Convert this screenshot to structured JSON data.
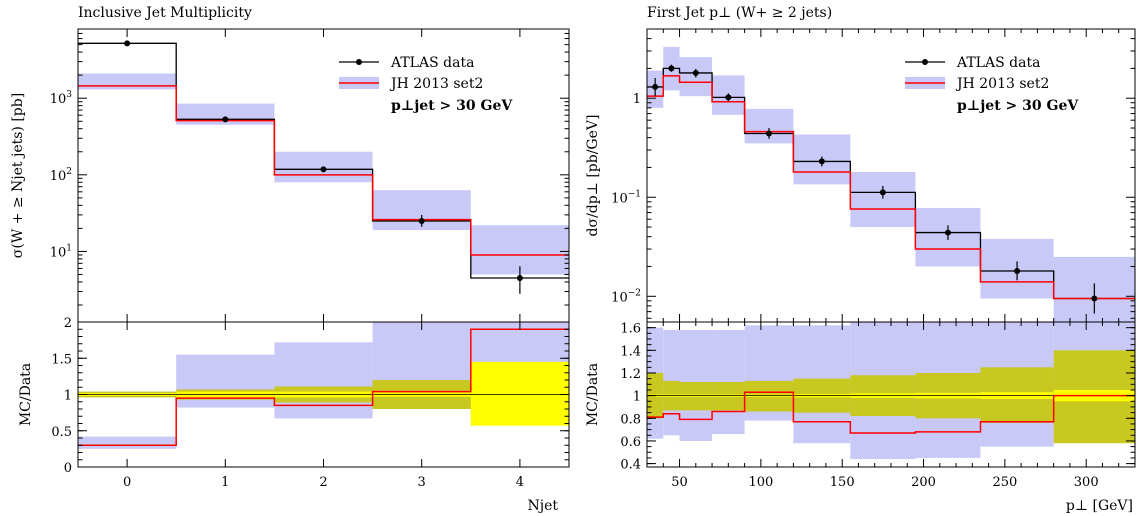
{
  "colors": {
    "data": "#000000",
    "mc": "#ff0000",
    "mc_band": "#c9c9f7",
    "stat_band": "#ffff00",
    "syst_band": "#c8c820"
  },
  "legend": {
    "data": "ATLAS data",
    "mc": "JH 2013 set2",
    "cut": "p⊥jet > 30 GeV"
  },
  "chart_data": [
    {
      "type": "line",
      "title": "Inclusive Jet Multiplicity",
      "ylabel": "σ(W + ≥ Njet jets) [pb]",
      "ratio_ylabel": "MC/Data",
      "xlabel": "Njet",
      "yscale": "log",
      "xlim": [
        -0.5,
        4.5
      ],
      "ylim": [
        1.2,
        8000
      ],
      "ratio_ylim": [
        0,
        2
      ],
      "xticks": [
        "0",
        "1",
        "2",
        "3",
        "4"
      ],
      "yticks": [
        "10^1",
        "10^2",
        "10^3"
      ],
      "ratio_yticks": [
        "0",
        "0.5",
        "1",
        "1.5",
        "2"
      ],
      "bins": [
        [
          -0.5,
          0.5
        ],
        [
          0.5,
          1.5
        ],
        [
          1.5,
          2.5
        ],
        [
          2.5,
          3.5
        ],
        [
          3.5,
          4.5
        ]
      ],
      "data": {
        "values": [
          5200,
          530,
          118,
          25,
          4.5
        ],
        "err_lo": [
          5200,
          530,
          108,
          21,
          2.8
        ],
        "err_hi": [
          5200,
          530,
          128,
          30,
          6.4
        ]
      },
      "mc": {
        "values": [
          1450,
          510,
          100,
          26,
          9
        ],
        "band_lo": [
          1300,
          450,
          80,
          19,
          5
        ],
        "band_hi": [
          2100,
          850,
          200,
          63,
          22
        ]
      },
      "ratio": {
        "mc": [
          0.3,
          0.95,
          0.85,
          1.04,
          1.9
        ],
        "mc_band_lo": [
          0.25,
          0.82,
          0.67,
          0.8,
          1.4
        ],
        "mc_band_hi": [
          0.42,
          1.55,
          1.72,
          2.0,
          2.0
        ],
        "stat_lo": [
          0.98,
          0.96,
          0.96,
          0.97,
          0.57
        ],
        "stat_hi": [
          1.02,
          1.04,
          1.04,
          1.03,
          1.45
        ],
        "syst_lo": [
          0.96,
          0.93,
          0.89,
          0.8,
          0.6
        ],
        "syst_hi": [
          1.04,
          1.07,
          1.11,
          1.2,
          1.4
        ]
      }
    },
    {
      "type": "line",
      "title": "First Jet p⊥ (W+ ≥ 2 jets)",
      "ylabel": "dσ/dp⊥ [pb/GeV]",
      "ratio_ylabel": "MC/Data",
      "xlabel": "p⊥ [GeV]",
      "yscale": "log",
      "xlim": [
        30,
        330
      ],
      "ylim": [
        0.0055,
        5
      ],
      "ratio_ylim": [
        0.37,
        1.65
      ],
      "xticks": [
        "50",
        "100",
        "150",
        "200",
        "250",
        "300"
      ],
      "yticks": [
        "10^-2",
        "10^-1",
        "1"
      ],
      "ratio_yticks": [
        "0.4",
        "0.6",
        "0.8",
        "1",
        "1.2",
        "1.4",
        "1.6"
      ],
      "bins": [
        [
          30,
          40
        ],
        [
          40,
          50
        ],
        [
          50,
          70
        ],
        [
          70,
          90
        ],
        [
          90,
          120
        ],
        [
          120,
          155
        ],
        [
          155,
          195
        ],
        [
          195,
          235
        ],
        [
          235,
          280
        ],
        [
          280,
          330
        ]
      ],
      "data": {
        "values": [
          1.3,
          2.0,
          1.8,
          1.02,
          0.44,
          0.23,
          0.112,
          0.044,
          0.018,
          0.0095
        ],
        "err_lo": [
          1.05,
          1.85,
          1.62,
          0.93,
          0.39,
          0.205,
          0.097,
          0.037,
          0.0145,
          0.0067
        ],
        "err_hi": [
          1.6,
          2.18,
          1.98,
          1.12,
          0.5,
          0.258,
          0.13,
          0.052,
          0.0225,
          0.0135
        ]
      },
      "mc": {
        "values": [
          1.05,
          1.68,
          1.45,
          0.92,
          0.46,
          0.18,
          0.076,
          0.03,
          0.014,
          0.0095
        ],
        "band_lo": [
          0.8,
          1.2,
          1.05,
          0.68,
          0.35,
          0.135,
          0.05,
          0.02,
          0.0095,
          0.0055
        ],
        "band_hi": [
          1.9,
          3.3,
          2.6,
          1.7,
          0.78,
          0.43,
          0.18,
          0.078,
          0.038,
          0.025
        ]
      },
      "ratio": {
        "mc": [
          0.81,
          0.84,
          0.79,
          0.86,
          1.03,
          0.77,
          0.67,
          0.68,
          0.77,
          1.0
        ],
        "mc_band_lo": [
          0.62,
          0.65,
          0.6,
          0.66,
          0.78,
          0.58,
          0.44,
          0.45,
          0.55,
          0.62
        ],
        "mc_band_hi": [
          1.6,
          1.58,
          1.58,
          1.58,
          1.62,
          1.62,
          1.65,
          1.65,
          1.65,
          1.65
        ],
        "stat_lo": [
          0.99,
          0.99,
          0.99,
          0.99,
          0.99,
          0.985,
          0.98,
          0.975,
          0.97,
          0.95
        ],
        "stat_hi": [
          1.01,
          1.01,
          1.01,
          1.01,
          1.01,
          1.015,
          1.02,
          1.025,
          1.03,
          1.05
        ],
        "syst_lo": [
          0.8,
          0.87,
          0.87,
          0.87,
          0.86,
          0.85,
          0.82,
          0.8,
          0.76,
          0.58
        ],
        "syst_hi": [
          1.2,
          1.13,
          1.12,
          1.12,
          1.13,
          1.15,
          1.18,
          1.2,
          1.25,
          1.4
        ]
      }
    }
  ]
}
